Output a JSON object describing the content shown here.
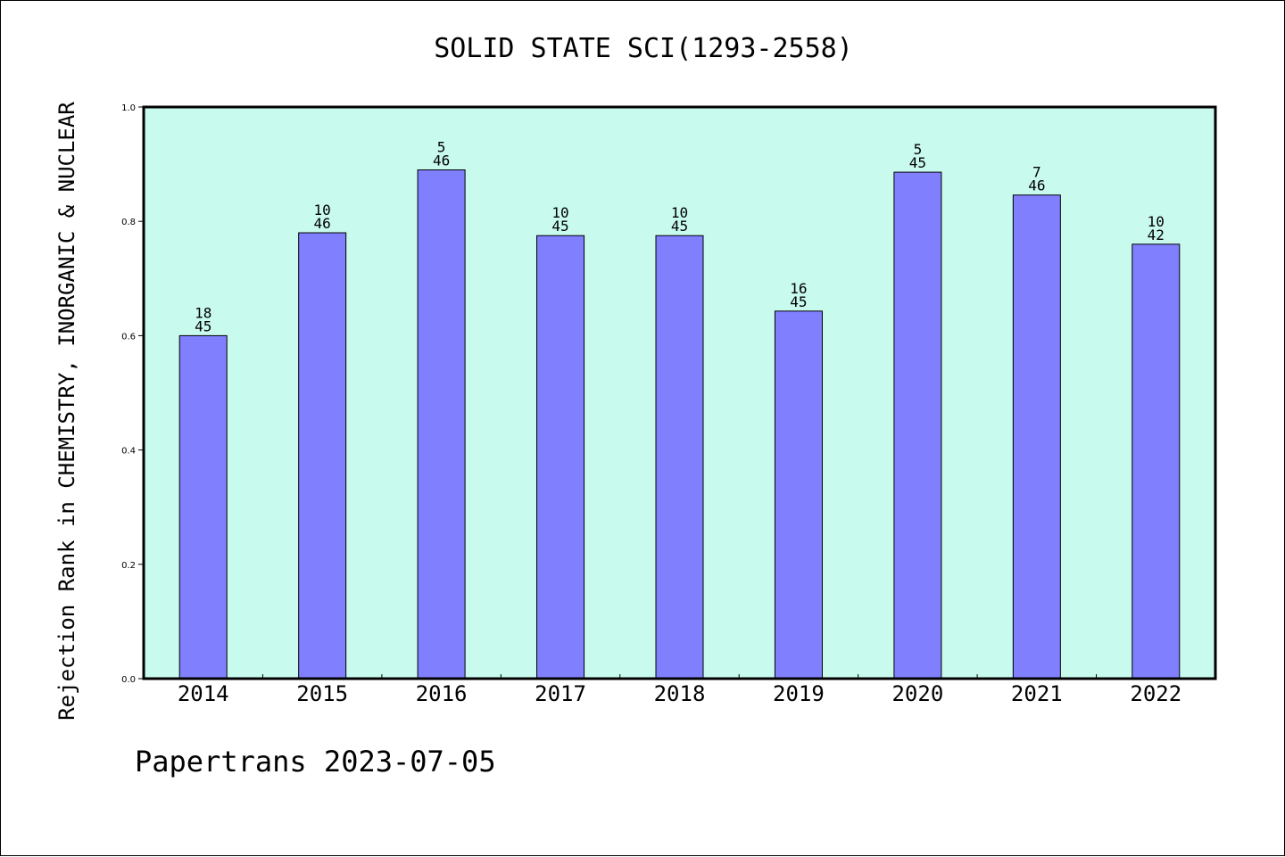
{
  "chart_data": {
    "type": "bar",
    "title": "SOLID STATE SCI(1293-2558)",
    "xlabel": "",
    "ylabel": "Rejection Rank in CHEMISTRY, INORGANIC & NUCLEAR",
    "categories": [
      "2014",
      "2015",
      "2016",
      "2017",
      "2018",
      "2019",
      "2020",
      "2021",
      "2022"
    ],
    "values": [
      0.6,
      0.78,
      0.89,
      0.775,
      0.775,
      0.643,
      0.886,
      0.846,
      0.76
    ],
    "label_top": [
      "18",
      "10",
      "5",
      "10",
      "10",
      "16",
      "5",
      "7",
      "10"
    ],
    "label_bottom": [
      "45",
      "46",
      "46",
      "45",
      "45",
      "45",
      "45",
      "46",
      "42"
    ],
    "ylim": [
      0,
      1.0
    ],
    "yticks": [
      "0.0",
      "0.2",
      "0.4",
      "0.6",
      "0.8",
      "1.0"
    ],
    "grid": false,
    "colors": {
      "plot_bg": "#c8faee",
      "bar": "#8080ff",
      "bar_edge": "#000000"
    }
  },
  "footer": {
    "note": "Papertrans 2023-07-05"
  }
}
